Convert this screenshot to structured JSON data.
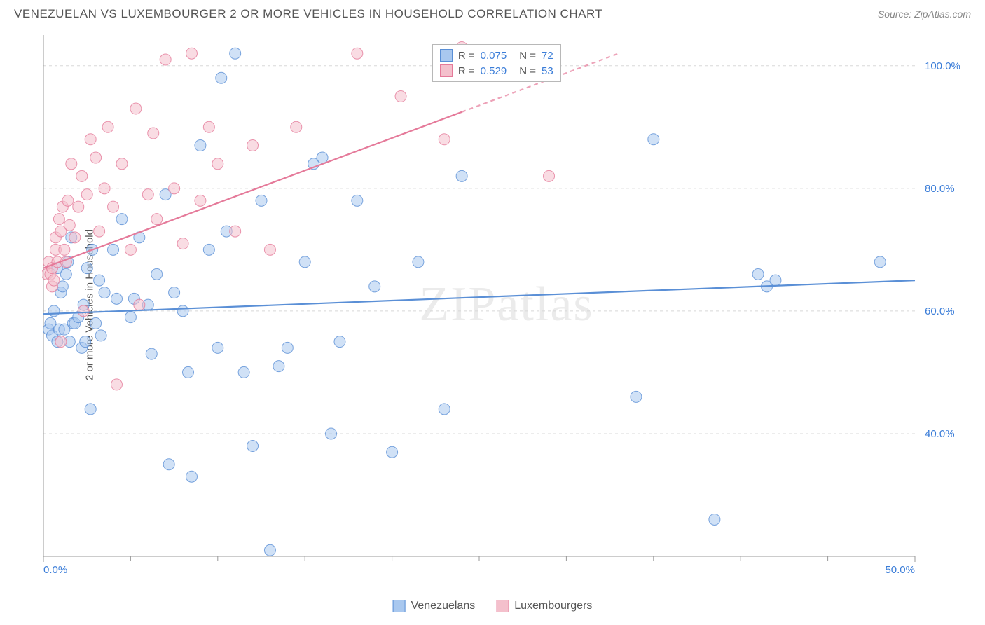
{
  "header": {
    "title": "VENEZUELAN VS LUXEMBOURGER 2 OR MORE VEHICLES IN HOUSEHOLD CORRELATION CHART",
    "source_prefix": "Source: ",
    "source_name": "ZipAtlas.com"
  },
  "watermark": "ZIPatlas",
  "chart": {
    "type": "scatter",
    "ylabel": "2 or more Vehicles in Household",
    "xlim": [
      0,
      50
    ],
    "ylim": [
      20,
      105
    ],
    "x_ticks": [
      0,
      50
    ],
    "x_tick_labels": [
      "0.0%",
      "50.0%"
    ],
    "x_minor_ticks": [
      5,
      10,
      15,
      20,
      25,
      30,
      35,
      40,
      45
    ],
    "y_ticks": [
      40,
      60,
      80,
      100
    ],
    "y_tick_labels": [
      "40.0%",
      "60.0%",
      "80.0%",
      "100.0%"
    ],
    "grid_color": "#d8d8d8",
    "axis_color": "#999999",
    "label_color": "#3b7dd8",
    "background_color": "#ffffff",
    "marker_radius": 8,
    "marker_opacity": 0.55,
    "series": [
      {
        "name": "Venezuelans",
        "color_fill": "#a9c8ef",
        "color_stroke": "#5a8fd6",
        "R": "0.075",
        "N": "72",
        "trend": {
          "x1": 0,
          "y1": 59.5,
          "x2": 50,
          "y2": 65,
          "dash_after_x": null
        },
        "points": [
          [
            0.3,
            57
          ],
          [
            0.4,
            58
          ],
          [
            0.5,
            56
          ],
          [
            0.6,
            60
          ],
          [
            0.8,
            55
          ],
          [
            0.8,
            67
          ],
          [
            0.9,
            57
          ],
          [
            1.0,
            63
          ],
          [
            1.1,
            64
          ],
          [
            1.2,
            57
          ],
          [
            1.3,
            66
          ],
          [
            1.4,
            68
          ],
          [
            1.5,
            55
          ],
          [
            1.6,
            72
          ],
          [
            1.7,
            58
          ],
          [
            1.8,
            58
          ],
          [
            2.0,
            59
          ],
          [
            2.2,
            54
          ],
          [
            2.3,
            61
          ],
          [
            2.4,
            55
          ],
          [
            2.5,
            67
          ],
          [
            2.7,
            44
          ],
          [
            2.8,
            70
          ],
          [
            3.0,
            58
          ],
          [
            3.2,
            65
          ],
          [
            3.3,
            56
          ],
          [
            3.5,
            63
          ],
          [
            4.0,
            70
          ],
          [
            4.2,
            62
          ],
          [
            4.5,
            75
          ],
          [
            5.0,
            59
          ],
          [
            5.2,
            62
          ],
          [
            5.5,
            72
          ],
          [
            6.0,
            61
          ],
          [
            6.2,
            53
          ],
          [
            6.5,
            66
          ],
          [
            7.0,
            79
          ],
          [
            7.2,
            35
          ],
          [
            7.5,
            63
          ],
          [
            8.0,
            60
          ],
          [
            8.3,
            50
          ],
          [
            8.5,
            33
          ],
          [
            9.0,
            87
          ],
          [
            9.5,
            70
          ],
          [
            10.0,
            54
          ],
          [
            10.2,
            98
          ],
          [
            10.5,
            73
          ],
          [
            11.0,
            102
          ],
          [
            11.5,
            50
          ],
          [
            12.0,
            38
          ],
          [
            12.5,
            78
          ],
          [
            13.0,
            21
          ],
          [
            13.5,
            51
          ],
          [
            14.0,
            54
          ],
          [
            15.0,
            68
          ],
          [
            15.5,
            84
          ],
          [
            16.0,
            85
          ],
          [
            16.5,
            40
          ],
          [
            17.0,
            55
          ],
          [
            18.0,
            78
          ],
          [
            19.0,
            64
          ],
          [
            20.0,
            37
          ],
          [
            21.5,
            68
          ],
          [
            23.0,
            44
          ],
          [
            24.0,
            82
          ],
          [
            34.0,
            46
          ],
          [
            35.0,
            88
          ],
          [
            38.5,
            26
          ],
          [
            41.0,
            66
          ],
          [
            41.5,
            64
          ],
          [
            42.0,
            65
          ],
          [
            48.0,
            68
          ]
        ]
      },
      {
        "name": "Luxembourgers",
        "color_fill": "#f4c0cc",
        "color_stroke": "#e57a9a",
        "R": "0.529",
        "N": "53",
        "trend": {
          "x1": 0,
          "y1": 67,
          "x2": 33,
          "y2": 102,
          "dash_after_x": 24
        },
        "points": [
          [
            0.2,
            66
          ],
          [
            0.3,
            68
          ],
          [
            0.4,
            66
          ],
          [
            0.5,
            67
          ],
          [
            0.5,
            64
          ],
          [
            0.6,
            65
          ],
          [
            0.7,
            70
          ],
          [
            0.7,
            72
          ],
          [
            0.8,
            68
          ],
          [
            0.9,
            75
          ],
          [
            1.0,
            73
          ],
          [
            1.0,
            55
          ],
          [
            1.1,
            77
          ],
          [
            1.2,
            70
          ],
          [
            1.3,
            68
          ],
          [
            1.4,
            78
          ],
          [
            1.5,
            74
          ],
          [
            1.6,
            84
          ],
          [
            1.8,
            72
          ],
          [
            2.0,
            77
          ],
          [
            2.2,
            82
          ],
          [
            2.3,
            60
          ],
          [
            2.5,
            79
          ],
          [
            2.7,
            88
          ],
          [
            3.0,
            85
          ],
          [
            3.2,
            73
          ],
          [
            3.5,
            80
          ],
          [
            3.7,
            90
          ],
          [
            4.0,
            77
          ],
          [
            4.2,
            48
          ],
          [
            4.5,
            84
          ],
          [
            5.0,
            70
          ],
          [
            5.3,
            93
          ],
          [
            5.5,
            61
          ],
          [
            6.0,
            79
          ],
          [
            6.3,
            89
          ],
          [
            6.5,
            75
          ],
          [
            7.0,
            101
          ],
          [
            7.5,
            80
          ],
          [
            8.0,
            71
          ],
          [
            8.5,
            102
          ],
          [
            9.0,
            78
          ],
          [
            9.5,
            90
          ],
          [
            10.0,
            84
          ],
          [
            11.0,
            73
          ],
          [
            12.0,
            87
          ],
          [
            13.0,
            70
          ],
          [
            14.5,
            90
          ],
          [
            18.0,
            102
          ],
          [
            20.5,
            95
          ],
          [
            23.0,
            88
          ],
          [
            24.0,
            103
          ],
          [
            29.0,
            82
          ]
        ]
      }
    ],
    "legend": {
      "items": [
        {
          "label": "Venezuelans",
          "fill": "#a9c8ef",
          "stroke": "#5a8fd6"
        },
        {
          "label": "Luxembourgers",
          "fill": "#f4c0cc",
          "stroke": "#e57a9a"
        }
      ]
    },
    "stats_box": {
      "top_pct": 2,
      "left_pct": 42
    }
  }
}
